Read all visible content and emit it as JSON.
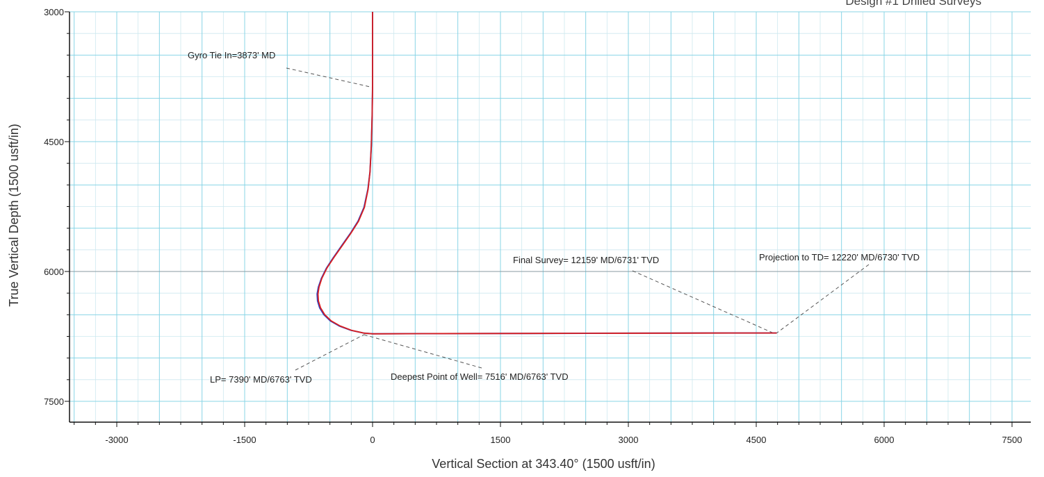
{
  "chart_data": {
    "type": "line",
    "title": "Design #1 Drilled Surveys",
    "xlabel": "Vertical Section at 343.40° (1500 usft/in)",
    "ylabel": "True Vertical Depth (1500 usft/in)",
    "xlim": [
      -3500,
      7600
    ],
    "ylim": [
      7780,
      3000
    ],
    "x_ticks": [
      -3000,
      -1500,
      0,
      1500,
      3000,
      4500,
      6000,
      7500
    ],
    "y_ticks": [
      3000,
      4500,
      6000,
      7500
    ],
    "grid": true,
    "colors": {
      "grid_major": "#88d4e6",
      "grid_minor": "#cde8ef",
      "survey": "#d91f1f",
      "plan": "#2b3fc4"
    },
    "series": [
      {
        "role": "plan",
        "x": [
          0,
          0,
          -5,
          -15,
          -30,
          -55,
          -100,
          -170,
          -260,
          -360,
          -460,
          -540,
          -600,
          -635,
          -650,
          -645,
          -620,
          -570,
          -495,
          -390,
          -250,
          -100,
          0,
          600,
          1500,
          2500,
          3500,
          4200,
          4740
        ],
        "y": [
          3000,
          3873,
          4200,
          4550,
          4850,
          5050,
          5260,
          5420,
          5560,
          5700,
          5840,
          5960,
          6080,
          6180,
          6260,
          6340,
          6420,
          6500,
          6570,
          6630,
          6680,
          6712,
          6720,
          6718,
          6716,
          6714,
          6712,
          6711,
          6711
        ]
      },
      {
        "role": "survey",
        "x": [
          0,
          0,
          -5,
          -15,
          -30,
          -52,
          -95,
          -165,
          -255,
          -355,
          -455,
          -535,
          -595,
          -628,
          -640,
          -635,
          -610,
          -560,
          -485,
          -380,
          -245,
          -100,
          0,
          600,
          1500,
          2500,
          3500,
          4200,
          4740
        ],
        "y": [
          3000,
          3873,
          4200,
          4550,
          4850,
          5050,
          5260,
          5420,
          5560,
          5700,
          5840,
          5960,
          6080,
          6180,
          6260,
          6340,
          6420,
          6500,
          6570,
          6630,
          6680,
          6712,
          6720,
          6718,
          6716,
          6714,
          6712,
          6711,
          6711
        ]
      }
    ],
    "annotations": [
      {
        "text": "Gyro Tie In=3873' MD",
        "point": [
          0,
          3873
        ]
      },
      {
        "text": "Final Survey= 12159' MD/6731' TVD",
        "point": [
          4700,
          6711
        ]
      },
      {
        "text": "Projection to TD= 12220' MD/6730' TVD",
        "point": [
          4740,
          6711
        ]
      },
      {
        "text": "LP= 7390' MD/6763' TVD",
        "point": [
          -100,
          6730
        ]
      },
      {
        "text": "Deepest Point of Well= 7516' MD/6763' TVD",
        "point": [
          -100,
          6730
        ]
      }
    ]
  }
}
